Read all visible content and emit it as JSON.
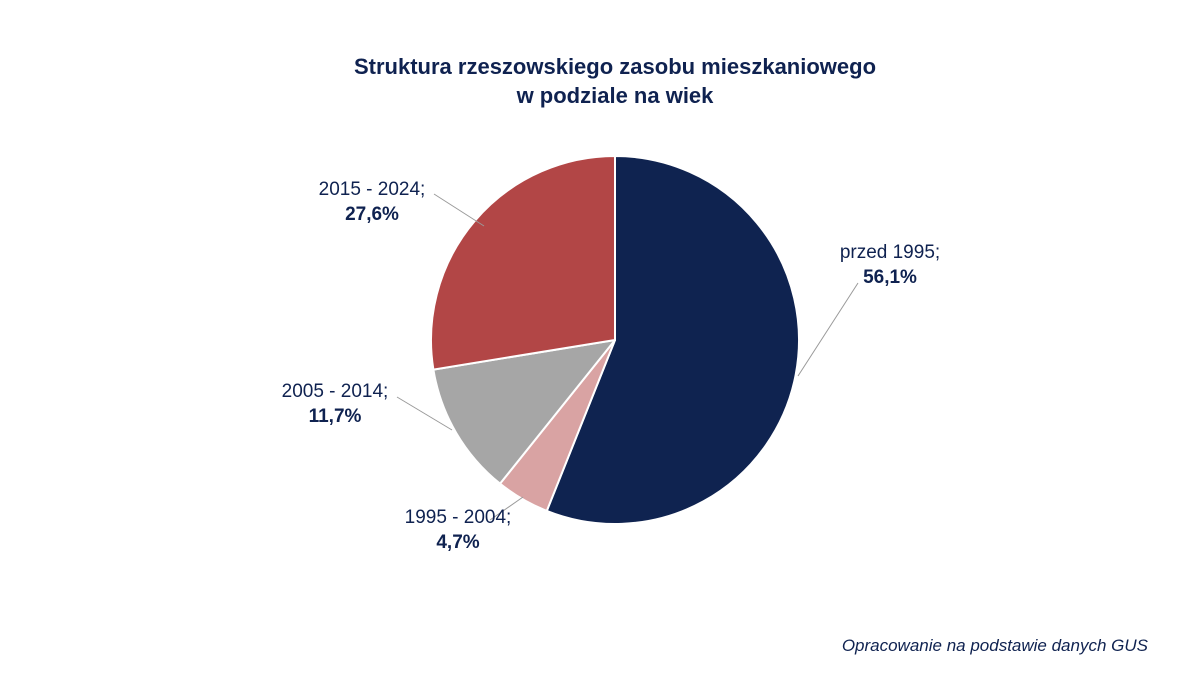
{
  "chart_data": {
    "type": "pie",
    "title": {
      "line1": "Struktura rzeszowskiego zasobu mieszkaniowego",
      "line2": "w podziale na wiek"
    },
    "slices": [
      {
        "label": "przed 1995;",
        "value": 56.1,
        "value_text": "56,1%",
        "color": "#0f2350"
      },
      {
        "label": "1995 - 2004;",
        "value": 4.7,
        "value_text": "4,7%",
        "color": "#d9a3a3"
      },
      {
        "label": "2005 - 2014;",
        "value": 11.7,
        "value_text": "11,7%",
        "color": "#a6a6a6"
      },
      {
        "label": "2015 - 2024;",
        "value": 27.6,
        "value_text": "27,6%",
        "color": "#b24646"
      }
    ],
    "start": "12 o'clock",
    "direction": "clockwise"
  },
  "source_note": "Opracowanie na podstawie danych GUS"
}
